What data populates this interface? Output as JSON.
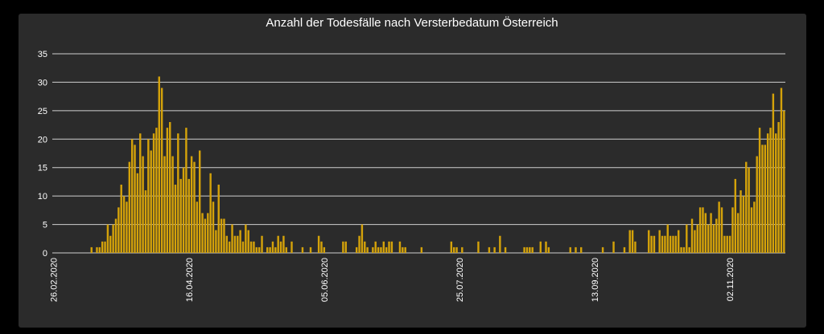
{
  "chart_data": {
    "type": "bar",
    "title": "Anzahl der Todesfälle nach Versterbedatum Österreich",
    "xlabel": "",
    "ylabel": "",
    "ylim": [
      0,
      35
    ],
    "yticks": [
      0,
      5,
      10,
      15,
      20,
      25,
      30,
      35
    ],
    "grid": true,
    "start_date": "2020-02-26",
    "x_tick_labels": [
      "26.02.2020",
      "16.04.2020",
      "05.06.2020",
      "25.07.2020",
      "13.09.2020",
      "02.11.2020"
    ],
    "series": [
      {
        "color": "#d4a20a",
        "values": [
          0,
          0,
          0,
          0,
          0,
          0,
          0,
          0,
          0,
          0,
          0,
          0,
          0,
          0,
          1,
          0,
          1,
          1,
          2,
          2,
          5,
          3,
          5,
          6,
          8,
          12,
          10,
          9,
          16,
          20,
          19,
          14,
          21,
          17,
          11,
          20,
          18,
          21,
          22,
          31,
          29,
          17,
          22,
          23,
          17,
          12,
          21,
          13,
          15,
          22,
          13,
          17,
          16,
          9,
          18,
          7,
          6,
          7,
          14,
          9,
          4,
          12,
          6,
          6,
          3,
          2,
          5,
          3,
          3,
          4,
          2,
          5,
          4,
          2,
          2,
          1,
          1,
          3,
          0,
          1,
          1,
          2,
          1,
          3,
          2,
          3,
          1,
          0,
          2,
          0,
          0,
          0,
          1,
          0,
          0,
          1,
          0,
          0,
          3,
          2,
          1,
          0,
          0,
          0,
          0,
          0,
          0,
          2,
          2,
          0,
          0,
          0,
          1,
          3,
          5,
          2,
          1,
          0,
          1,
          2,
          1,
          1,
          2,
          1,
          2,
          2,
          0,
          0,
          2,
          1,
          1,
          0,
          0,
          0,
          0,
          0,
          1,
          0,
          0,
          0,
          0,
          0,
          0,
          0,
          0,
          0,
          0,
          2,
          1,
          1,
          0,
          1,
          0,
          0,
          0,
          0,
          0,
          2,
          0,
          0,
          0,
          1,
          0,
          1,
          0,
          3,
          0,
          1,
          0,
          0,
          0,
          0,
          0,
          0,
          1,
          1,
          1,
          1,
          0,
          0,
          2,
          0,
          2,
          1,
          0,
          0,
          0,
          0,
          0,
          0,
          0,
          1,
          0,
          1,
          0,
          1,
          0,
          0,
          0,
          0,
          0,
          0,
          0,
          1,
          0,
          0,
          0,
          2,
          0,
          0,
          0,
          1,
          0,
          4,
          4,
          2,
          0,
          0,
          0,
          0,
          4,
          3,
          3,
          0,
          4,
          3,
          3,
          5,
          3,
          3,
          3,
          4,
          1,
          1,
          5,
          1,
          6,
          4,
          5,
          8,
          8,
          7,
          5,
          7,
          5,
          6,
          9,
          8,
          3,
          3,
          3,
          8,
          13,
          7,
          11,
          10,
          16,
          15,
          8,
          9,
          17,
          22,
          19,
          19,
          21,
          22,
          28,
          21,
          23,
          29,
          25
        ]
      }
    ]
  }
}
